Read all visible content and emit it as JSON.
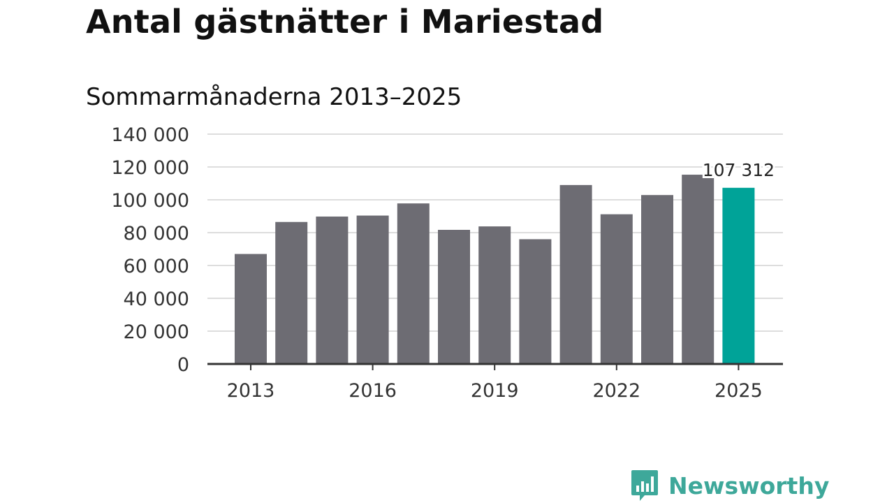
{
  "header": {
    "title": "Antal gästnätter i Mariestad",
    "subtitle": "Sommarmånaderna 2013–2025"
  },
  "brand": {
    "name": "Newsworthy",
    "logo_icon": "bar-chart-speech-bubble-icon",
    "color": "#3ea89a"
  },
  "chart_data": {
    "type": "bar",
    "categories": [
      "2013",
      "2014",
      "2015",
      "2016",
      "2017",
      "2018",
      "2019",
      "2020",
      "2021",
      "2022",
      "2023",
      "2024",
      "2025"
    ],
    "values": [
      67000,
      86500,
      89800,
      90400,
      97800,
      81700,
      83800,
      76000,
      109000,
      91200,
      102900,
      115300,
      107312
    ],
    "x_tick_labels": [
      "2013",
      "2016",
      "2019",
      "2022",
      "2025"
    ],
    "y_ticks": [
      0,
      20000,
      40000,
      60000,
      80000,
      100000,
      120000,
      140000
    ],
    "y_tick_labels": [
      "0",
      "20 000",
      "40 000",
      "60 000",
      "80 000",
      "100 000",
      "120 000",
      "140 000"
    ],
    "ylim": [
      0,
      140000
    ],
    "xlabel": "",
    "ylabel": "",
    "grid": true,
    "colors": {
      "bar": "#6d6c73",
      "highlight": "#00a398",
      "grid": "#dddddd",
      "axis": "#333333"
    },
    "highlight_index": 12,
    "annotation": {
      "index": 12,
      "text": "107 312"
    }
  }
}
